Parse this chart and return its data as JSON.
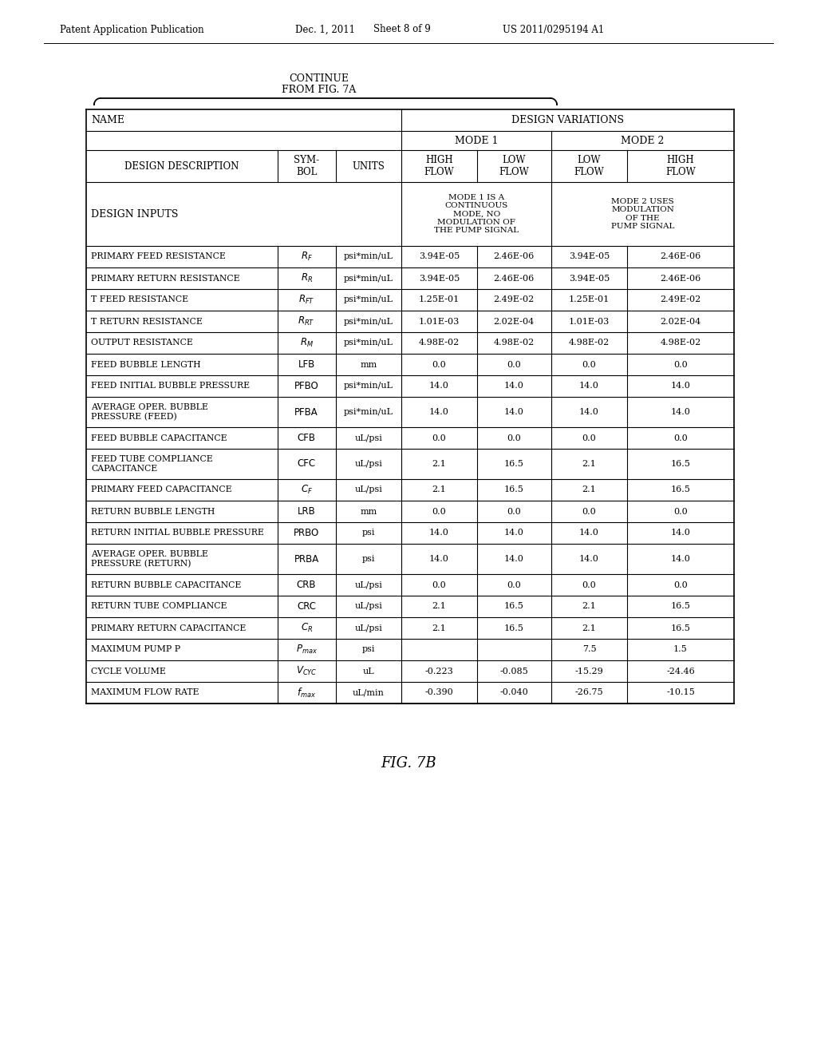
{
  "header_text": "Patent Application Publication",
  "date_text": "Dec. 1, 2011",
  "sheet_text": "Sheet 8 of 9",
  "patent_text": "US 2011/0295194 A1",
  "continue_line1": "CONTINUE",
  "continue_line2": "FROM FIG. 7A",
  "fig_label": "FIG. 7B",
  "rows": [
    [
      "PRIMARY FEED RESISTANCE",
      "R_F",
      "psi*min/uL",
      "3.94E-05",
      "2.46E-06",
      "3.94E-05",
      "2.46E-06"
    ],
    [
      "PRIMARY RETURN RESISTANCE",
      "R_R",
      "psi*min/uL",
      "3.94E-05",
      "2.46E-06",
      "3.94E-05",
      "2.46E-06"
    ],
    [
      "T FEED RESISTANCE",
      "R_FT",
      "psi*min/uL",
      "1.25E-01",
      "2.49E-02",
      "1.25E-01",
      "2.49E-02"
    ],
    [
      "T RETURN RESISTANCE",
      "R_RT",
      "psi*min/uL",
      "1.01E-03",
      "2.02E-04",
      "1.01E-03",
      "2.02E-04"
    ],
    [
      "OUTPUT RESISTANCE",
      "R_M",
      "psi*min/uL",
      "4.98E-02",
      "4.98E-02",
      "4.98E-02",
      "4.98E-02"
    ],
    [
      "FEED BUBBLE LENGTH",
      "LFB",
      "mm",
      "0.0",
      "0.0",
      "0.0",
      "0.0"
    ],
    [
      "FEED INITIAL BUBBLE PRESSURE",
      "PFBO",
      "psi*min/uL",
      "14.0",
      "14.0",
      "14.0",
      "14.0"
    ],
    [
      "AVERAGE OPER. BUBBLE\nPRESSURE (FEED)",
      "PFBA",
      "psi*min/uL",
      "14.0",
      "14.0",
      "14.0",
      "14.0"
    ],
    [
      "FEED BUBBLE CAPACITANCE",
      "CFB",
      "uL/psi",
      "0.0",
      "0.0",
      "0.0",
      "0.0"
    ],
    [
      "FEED TUBE COMPLIANCE\nCAPACITANCE",
      "CFC",
      "uL/psi",
      "2.1",
      "16.5",
      "2.1",
      "16.5"
    ],
    [
      "PRIMARY FEED CAPACITANCE",
      "C_F",
      "uL/psi",
      "2.1",
      "16.5",
      "2.1",
      "16.5"
    ],
    [
      "RETURN BUBBLE LENGTH",
      "LRB",
      "mm",
      "0.0",
      "0.0",
      "0.0",
      "0.0"
    ],
    [
      "RETURN INITIAL BUBBLE PRESSURE",
      "PRBO",
      "psi",
      "14.0",
      "14.0",
      "14.0",
      "14.0"
    ],
    [
      "AVERAGE OPER. BUBBLE\nPRESSURE (RETURN)",
      "PRBA",
      "psi",
      "14.0",
      "14.0",
      "14.0",
      "14.0"
    ],
    [
      "RETURN BUBBLE CAPACITANCE",
      "CRB",
      "uL/psi",
      "0.0",
      "0.0",
      "0.0",
      "0.0"
    ],
    [
      "RETURN TUBE COMPLIANCE",
      "CRC",
      "uL/psi",
      "2.1",
      "16.5",
      "2.1",
      "16.5"
    ],
    [
      "PRIMARY RETURN CAPACITANCE",
      "C_R",
      "uL/psi",
      "2.1",
      "16.5",
      "2.1",
      "16.5"
    ],
    [
      "MAXIMUM PUMP P",
      "P_max",
      "psi",
      "",
      "",
      "7.5",
      "1.5"
    ],
    [
      "CYCLE VOLUME",
      "V_cyc",
      "uL",
      "-0.223",
      "-0.085",
      "-15.29",
      "-24.46"
    ],
    [
      "MAXIMUM FLOW RATE",
      "f_max",
      "uL/min",
      "-0.390",
      "-0.040",
      "-26.75",
      "-10.15"
    ]
  ],
  "symbol_keys": [
    "R_F",
    "R_R",
    "R_FT",
    "R_RT",
    "R_M",
    "LFB",
    "PFBO",
    "PFBA",
    "CFB",
    "CFC",
    "C_F",
    "LRB",
    "PRBO",
    "PRBA",
    "CRB",
    "CRC",
    "C_R",
    "P_max",
    "V_cyc",
    "f_max"
  ],
  "bg_color": "#ffffff"
}
